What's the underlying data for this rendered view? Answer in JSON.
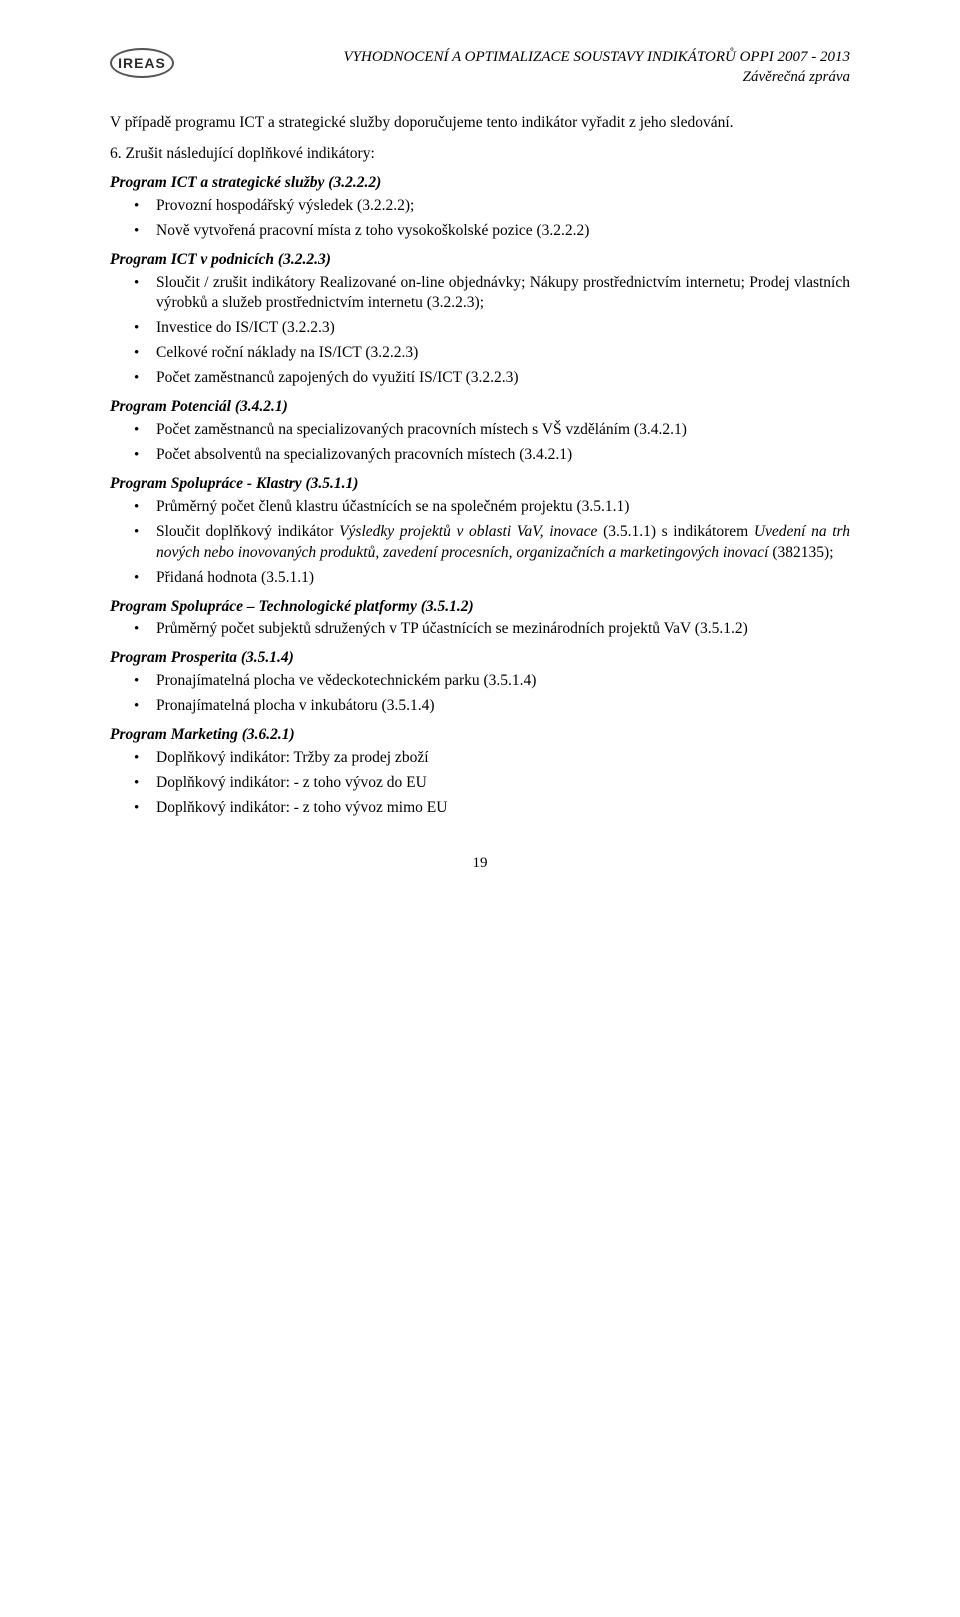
{
  "header": {
    "logo_text": "IREAS",
    "title_line1": "VYHODNOCENÍ A OPTIMALIZACE SOUSTAVY INDIKÁTORŮ OPPI 2007 - 2013",
    "title_line2": "Závěrečná zpráva"
  },
  "intro": "V případě programu ICT a strategické služby doporučujeme tento indikátor vyřadit z jeho sledování.",
  "numbered_lead": {
    "num": "6.",
    "text": "Zrušit následující doplňkové indikátory:"
  },
  "sections": [
    {
      "title": "Program ICT a strategické služby (3.2.2.2)",
      "items": [
        {
          "text": "Provozní hospodářský výsledek (3.2.2.2);"
        },
        {
          "text": "Nově vytvořená pracovní místa z toho vysokoškolské pozice (3.2.2.2)"
        }
      ]
    },
    {
      "title": "Program ICT v podnicích (3.2.2.3)",
      "items": [
        {
          "text": "Sloučit / zrušit indikátory Realizované on-line objednávky; Nákupy prostřednictvím internetu; Prodej vlastních výrobků a služeb prostřednictvím internetu (3.2.2.3);"
        },
        {
          "text": "Investice do IS/ICT (3.2.2.3)"
        },
        {
          "text": "Celkové roční náklady na IS/ICT (3.2.2.3)"
        },
        {
          "text": "Počet zaměstnanců zapojených do využití IS/ICT (3.2.2.3)"
        }
      ]
    },
    {
      "title": "Program Potenciál (3.4.2.1)",
      "items": [
        {
          "text": "Počet zaměstnanců na specializovaných pracovních místech s VŠ vzděláním (3.4.2.1)"
        },
        {
          "text": "Počet absolventů na specializovaných pracovních místech (3.4.2.1)"
        }
      ]
    },
    {
      "title": "Program Spolupráce - Klastry (3.5.1.1)",
      "items": [
        {
          "text": "Průměrný počet členů klastru účastnících se na společném projektu (3.5.1.1)"
        },
        {
          "pre": "Sloučit doplňkový indikátor ",
          "it1": "Výsledky projektů v oblasti VaV, inovace",
          "mid1": " (3.5.1.1) s indikátorem ",
          "it2": "Uvedení na trh nových nebo inovovaných produktů, zavedení procesních, organizačních a marketingových inovací",
          "post": " (382135);"
        },
        {
          "text": "Přidaná hodnota (3.5.1.1)"
        }
      ]
    },
    {
      "title": "Program Spolupráce – Technologické platformy (3.5.1.2)",
      "items": [
        {
          "text": "Průměrný počet subjektů sdružených v TP účastnících se mezinárodních projektů VaV (3.5.1.2)"
        }
      ]
    },
    {
      "title": "Program Prosperita (3.5.1.4)",
      "items": [
        {
          "text": "Pronajímatelná plocha ve vědeckotechnickém parku (3.5.1.4)"
        },
        {
          "text": "Pronajímatelná plocha v inkubátoru (3.5.1.4)"
        }
      ]
    },
    {
      "title": "Program Marketing (3.6.2.1)",
      "items": [
        {
          "text": "Doplňkový indikátor: Tržby za prodej zboží"
        },
        {
          "text": "Doplňkový indikátor: - z toho vývoz do EU"
        },
        {
          "text": "Doplňkový indikátor: - z toho vývoz mimo EU"
        }
      ]
    }
  ],
  "page_number": "19"
}
